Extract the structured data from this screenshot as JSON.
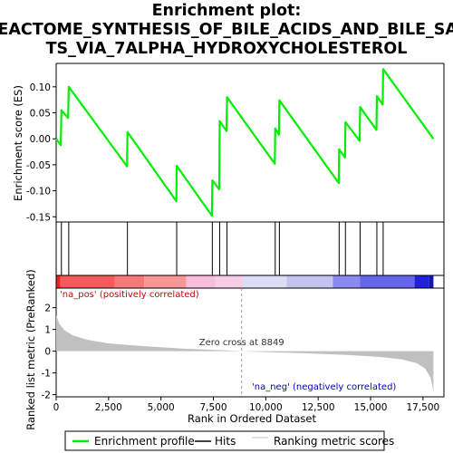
{
  "chart_data": {
    "type": "line",
    "title_lines": [
      "Enrichment plot:",
      "REACTOME_SYNTHESIS_OF_BILE_ACIDS_AND_BILE_SAL",
      "TS_VIA_7ALPHA_HYDROXYCHOLESTEROL"
    ],
    "xlabel": "Rank in Ordered Dataset",
    "ylabel_top": "Enrichment score (ES)",
    "ylabel_bottom": "Ranked list metric (PreRanked)",
    "xlim": [
      0,
      18500
    ],
    "x_ticks": [
      0,
      2500,
      5000,
      7500,
      10000,
      12500,
      15000,
      17500
    ],
    "x_tick_labels": [
      "0",
      "2,500",
      "5,000",
      "7,500",
      "10,000",
      "12,500",
      "15,000",
      "17,500"
    ],
    "es_ylim": [
      -0.16,
      0.145
    ],
    "es_ticks": [
      0.1,
      0.05,
      0.0,
      -0.05,
      -0.1,
      -0.15
    ],
    "es_tick_labels": [
      "0.10",
      "0.05",
      "0.00",
      "-0.05",
      "-0.10",
      "-0.15"
    ],
    "metric_ylim": [
      -2.1,
      2.9
    ],
    "metric_ticks": [
      2,
      1,
      0,
      -1,
      -2
    ],
    "metric_tick_labels": [
      "2",
      "1",
      "0",
      "-1",
      "-2"
    ],
    "total_ranks": 18000,
    "hits": [
      250,
      600,
      3400,
      5750,
      7450,
      7800,
      8150,
      10450,
      10650,
      13500,
      13800,
      14500,
      15300,
      15600
    ],
    "es_start": 0.0,
    "es_end": 0.0,
    "es_profile": [
      [
        0,
        0.0
      ],
      [
        220,
        -0.012
      ],
      [
        250,
        0.055
      ],
      [
        570,
        0.04
      ],
      [
        600,
        0.1
      ],
      [
        3380,
        -0.053
      ],
      [
        3400,
        0.013
      ],
      [
        5730,
        -0.12
      ],
      [
        5750,
        -0.052
      ],
      [
        7430,
        -0.148
      ],
      [
        7450,
        -0.08
      ],
      [
        7780,
        -0.097
      ],
      [
        7800,
        0.034
      ],
      [
        8130,
        0.015
      ],
      [
        8150,
        0.08
      ],
      [
        10430,
        -0.048
      ],
      [
        10450,
        0.02
      ],
      [
        10630,
        0.008
      ],
      [
        10650,
        0.074
      ],
      [
        13480,
        -0.085
      ],
      [
        13500,
        -0.02
      ],
      [
        13780,
        -0.036
      ],
      [
        13800,
        0.032
      ],
      [
        14480,
        -0.004
      ],
      [
        14500,
        0.061
      ],
      [
        15280,
        0.017
      ],
      [
        15300,
        0.082
      ],
      [
        15580,
        0.066
      ],
      [
        15600,
        0.134
      ],
      [
        18000,
        0.0
      ]
    ],
    "zero_cross": 8849,
    "zero_cross_label": "Zero cross at 8849",
    "pos_label": "'na_pos' (positively correlated)",
    "neg_label": "'na_neg' (negatively correlated)",
    "metric_profile": [
      [
        0,
        1.65
      ],
      [
        150,
        1.25
      ],
      [
        400,
        0.95
      ],
      [
        800,
        0.72
      ],
      [
        1500,
        0.52
      ],
      [
        2500,
        0.36
      ],
      [
        4000,
        0.24
      ],
      [
        6000,
        0.12
      ],
      [
        8000,
        0.04
      ],
      [
        8849,
        0.0
      ],
      [
        10000,
        -0.04
      ],
      [
        12000,
        -0.1
      ],
      [
        14000,
        -0.18
      ],
      [
        15500,
        -0.27
      ],
      [
        16500,
        -0.38
      ],
      [
        17200,
        -0.55
      ],
      [
        17600,
        -0.8
      ],
      [
        17850,
        -1.2
      ],
      [
        17950,
        -1.6
      ],
      [
        18000,
        -1.85
      ]
    ],
    "heat_bands": [
      {
        "from": 0,
        "to": 200,
        "color": "#ee2020"
      },
      {
        "from": 200,
        "to": 2800,
        "color": "#f45a5a"
      },
      {
        "from": 2800,
        "to": 4200,
        "color": "#f67878"
      },
      {
        "from": 4200,
        "to": 6200,
        "color": "#f89696"
      },
      {
        "from": 6200,
        "to": 7600,
        "color": "#f8bcdc"
      },
      {
        "from": 7600,
        "to": 8900,
        "color": "#f6cce6"
      },
      {
        "from": 8900,
        "to": 11000,
        "color": "#dcdcf4"
      },
      {
        "from": 11000,
        "to": 13200,
        "color": "#c4c4f0"
      },
      {
        "from": 13200,
        "to": 14500,
        "color": "#8a8af0"
      },
      {
        "from": 14500,
        "to": 17100,
        "color": "#6464ec"
      },
      {
        "from": 17100,
        "to": 17800,
        "color": "#2020d8"
      },
      {
        "from": 17800,
        "to": 18000,
        "color": "#1414b0"
      }
    ],
    "legend": [
      {
        "label": "Enrichment profile",
        "kind": "line",
        "color": "#00ee00"
      },
      {
        "label": "Hits",
        "kind": "line",
        "color": "#000000"
      },
      {
        "label": "Ranking metric scores",
        "kind": "line",
        "color": "#c0c0c0"
      }
    ],
    "colors": {
      "es_line": "#00ee00",
      "hits": "#000000",
      "metric": "#c0c0c0",
      "frame": "#000000",
      "pos_text": "#cc0000",
      "neg_text": "#0000cc"
    }
  }
}
